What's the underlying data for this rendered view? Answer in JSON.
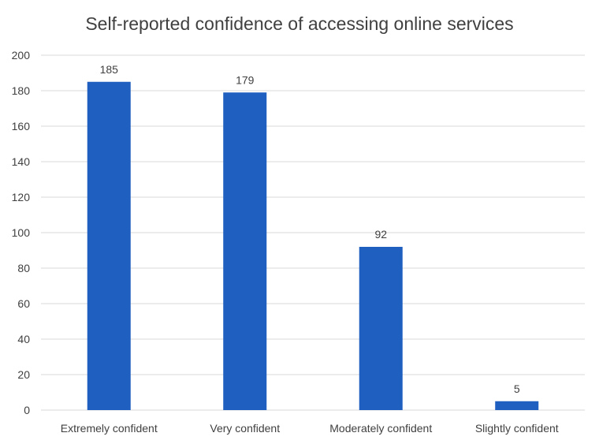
{
  "chart_data": {
    "type": "bar",
    "title": "Self-reported confidence of accessing online services",
    "xlabel": "",
    "ylabel": "",
    "categories": [
      "Extremely confident",
      "Very confident",
      "Moderately confident",
      "Slightly confident"
    ],
    "values": [
      185,
      179,
      92,
      5
    ],
    "data_labels": [
      "185",
      "179",
      "92",
      "5"
    ],
    "ylim": [
      0,
      200
    ],
    "yticks": [
      0,
      20,
      40,
      60,
      80,
      100,
      120,
      140,
      160,
      180,
      200
    ],
    "grid": true,
    "legend": "none",
    "bar_color": "#1f5fbf"
  }
}
